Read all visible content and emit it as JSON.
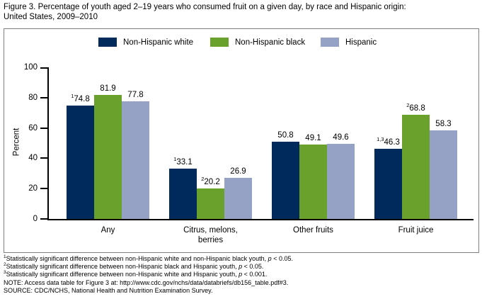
{
  "figure": {
    "title": "Figure 3. Percentage of youth aged 2–19 years who consumed fruit on a given day, by race and Hispanic origin:\nUnited States, 2009–2010"
  },
  "chart_data": {
    "type": "bar",
    "title": "Percentage of youth aged 2–19 years who consumed fruit on a given day, by race and Hispanic origin: United States, 2009–2010",
    "categories": [
      "Any",
      "Citrus, melons,\nberries",
      "Other fruits",
      "Fruit juice"
    ],
    "series": [
      {
        "name": "Non-Hispanic white",
        "color": "#002A5C",
        "values": [
          74.8,
          33.1,
          50.8,
          46.3
        ],
        "label_sups": [
          "1",
          "1",
          "",
          "1,3"
        ]
      },
      {
        "name": "Non-Hispanic black",
        "color": "#6AA02C",
        "values": [
          81.9,
          20.2,
          49.1,
          68.8
        ],
        "label_sups": [
          "",
          "2",
          "",
          "2"
        ]
      },
      {
        "name": "Hispanic",
        "color": "#95A2C5",
        "values": [
          77.8,
          26.9,
          49.6,
          58.3
        ],
        "label_sups": [
          "",
          "",
          "",
          ""
        ]
      }
    ],
    "xlabel": "",
    "ylabel": "Percent",
    "ylim": [
      0,
      100
    ],
    "yticks": [
      0,
      20,
      40,
      60,
      80,
      100
    ],
    "grid": false,
    "legend_position": "top-inside",
    "bar_value_labels": true
  },
  "footnotes": [
    {
      "sup": "1",
      "text": "Statistically significant difference between non-Hispanic white and non-Hispanic black youth, p < 0.05."
    },
    {
      "sup": "2",
      "text": "Statistically significant difference between non-Hispanic black and Hispanic youth, p < 0.05."
    },
    {
      "sup": "3",
      "text": "Statistically significant difference between non-Hispanic white and Hispanic youth, p < 0.001."
    },
    {
      "sup": "",
      "text": "NOTE: Access data table for Figure 3 at: http://www.cdc.gov/nchs/data/databriefs/db156_table.pdf#3."
    },
    {
      "sup": "",
      "text": "SOURCE: CDC/NCHS, National Health and Nutrition Examination Survey."
    }
  ],
  "colors": {
    "axis": "#000000",
    "frame_border": "#7F7F7F",
    "background": "#FFFFFF"
  }
}
